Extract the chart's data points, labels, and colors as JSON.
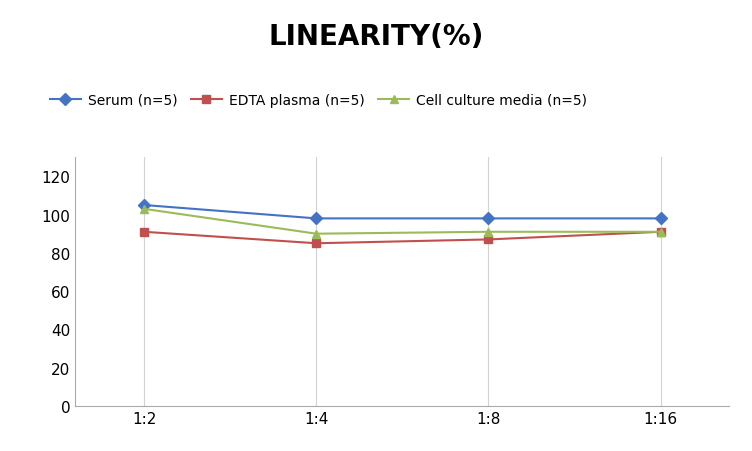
{
  "title": "LINEARITY(%)",
  "x_labels": [
    "1:2",
    "1:4",
    "1:8",
    "1:16"
  ],
  "series": [
    {
      "name": "Serum (n=5)",
      "values": [
        105,
        98,
        98,
        98
      ],
      "color": "#4472C4",
      "marker": "D",
      "marker_color": "#4472C4"
    },
    {
      "name": "EDTA plasma (n=5)",
      "values": [
        91,
        85,
        87,
        91
      ],
      "color": "#C0504D",
      "marker": "s",
      "marker_color": "#C0504D"
    },
    {
      "name": "Cell culture media (n=5)",
      "values": [
        103,
        90,
        91,
        91
      ],
      "color": "#9BBB59",
      "marker": "^",
      "marker_color": "#9BBB59"
    }
  ],
  "ylim": [
    0,
    130
  ],
  "yticks": [
    0,
    20,
    40,
    60,
    80,
    100,
    120
  ],
  "grid_color": "#D3D3D3",
  "background_color": "#FFFFFF",
  "title_fontsize": 20,
  "legend_fontsize": 10,
  "tick_fontsize": 11
}
